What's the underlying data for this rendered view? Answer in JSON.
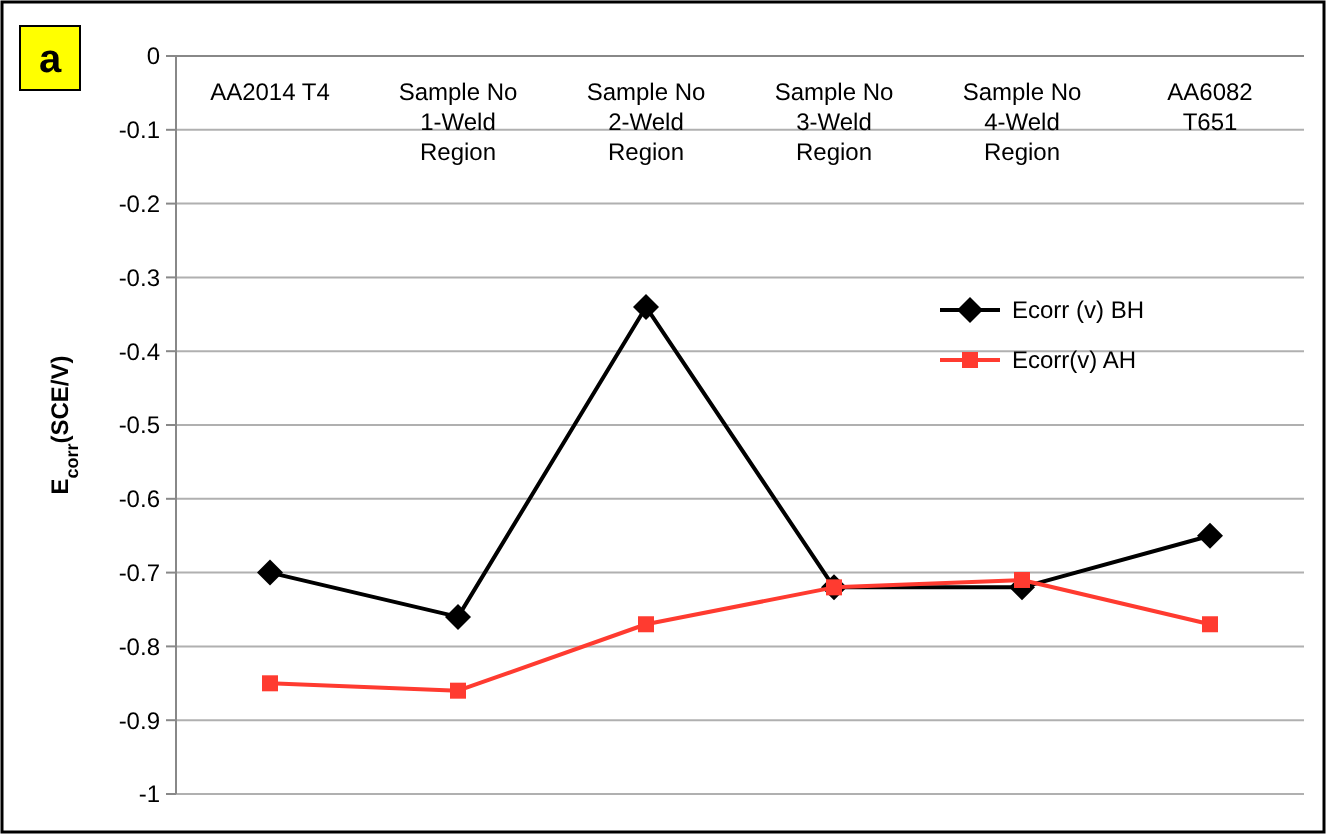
{
  "chart_data": {
    "type": "line",
    "ylabel": "E$_{corr}$(SCE/V)",
    "annotations": [
      "a"
    ],
    "categories": [
      "AA2014 T4",
      "Sample No 1-Weld Region",
      "Sample No 2-Weld Region",
      "Sample No 3-Weld Region",
      "Sample No 4-Weld Region",
      "AA6082 T651"
    ],
    "series": [
      {
        "name": "Ecorr (v) BH",
        "color": "#000000",
        "marker": "diamond",
        "values": [
          -0.7,
          -0.76,
          -0.34,
          -0.72,
          -0.72,
          -0.65
        ]
      },
      {
        "name": "Ecorr(v) AH",
        "color": "#ff3b30",
        "marker": "square",
        "values": [
          -0.85,
          -0.86,
          -0.77,
          -0.72,
          -0.71,
          -0.77
        ]
      }
    ],
    "ylim": [
      -1,
      0
    ],
    "yticks": [
      0,
      -0.1,
      -0.2,
      -0.3,
      -0.4,
      -0.5,
      -0.6,
      -0.7,
      -0.8,
      -0.9,
      -1
    ],
    "grid": "y",
    "legend": "right",
    "line_style": "solid"
  }
}
